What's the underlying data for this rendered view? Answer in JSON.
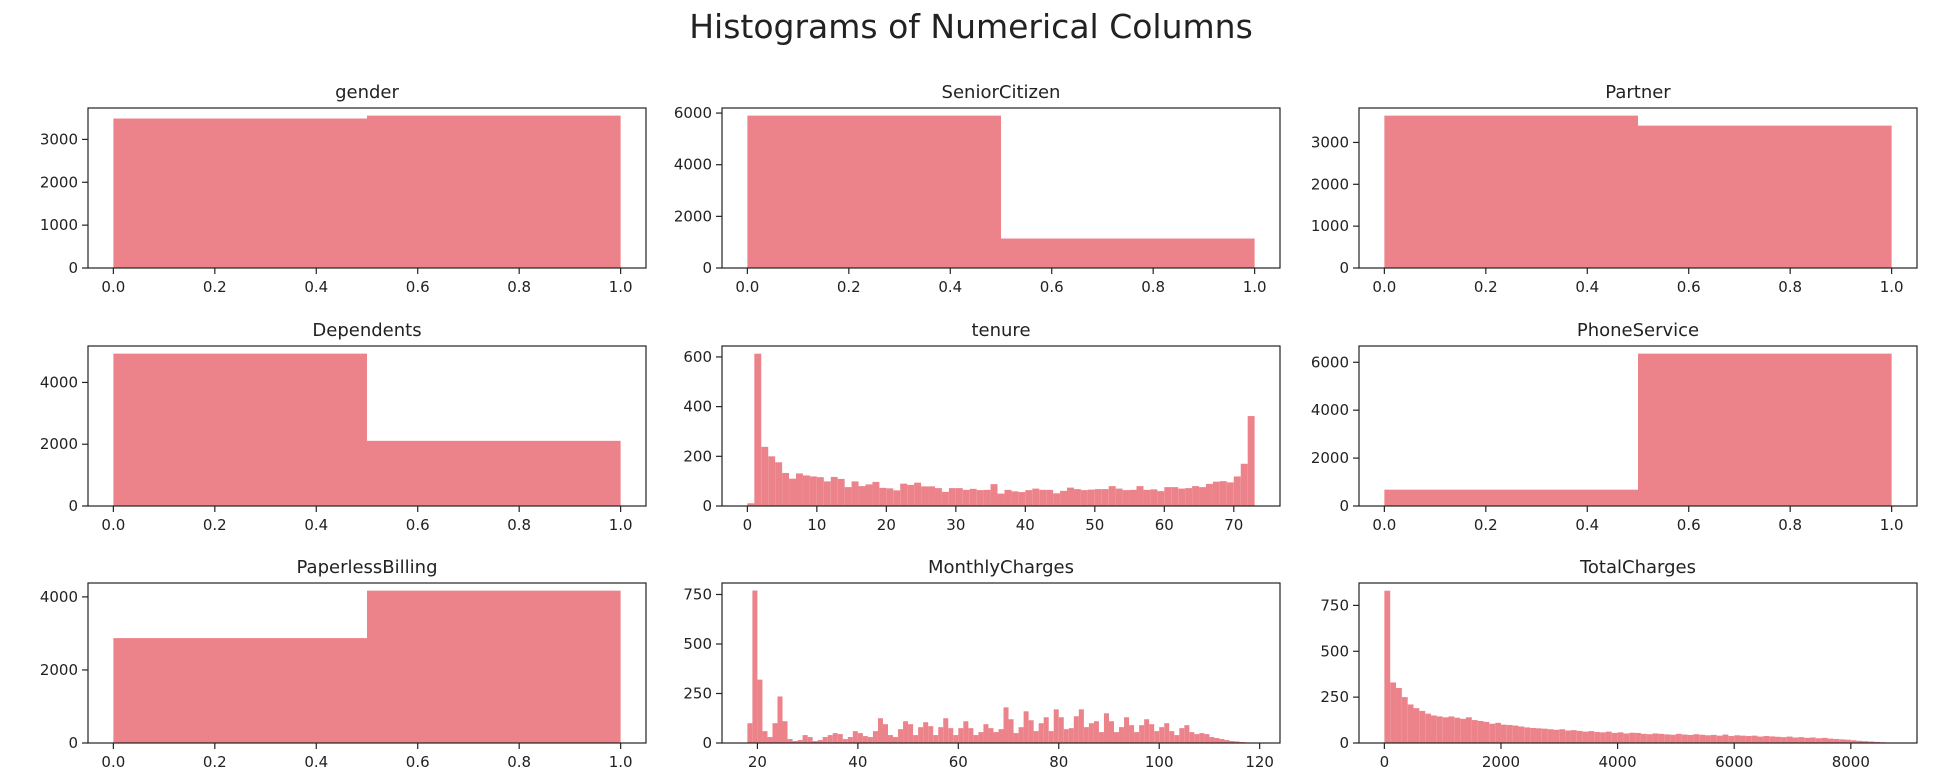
{
  "title": "Histograms of Numerical Columns",
  "chart_data": [
    {
      "type": "histogram",
      "title": "gender",
      "bins": [
        0,
        0.5,
        1
      ],
      "values": [
        3488,
        3555
      ],
      "color": "#ec838b",
      "xlim": [
        -0.05,
        1.05
      ],
      "ylim": [
        0,
        3733
      ],
      "xticks": [
        {
          "value": 0,
          "label": "0.0"
        },
        0.2,
        0.4,
        0.6,
        0.8,
        {
          "value": 1,
          "label": "1.0"
        }
      ],
      "yticks": [
        0,
        1000,
        2000,
        3000
      ]
    },
    {
      "type": "histogram",
      "title": "SeniorCitizen",
      "bins": [
        0,
        0.5,
        1
      ],
      "values": [
        5901,
        1142
      ],
      "color": "#ec838b",
      "xlim": [
        -0.05,
        1.05
      ],
      "ylim": [
        0,
        6196
      ],
      "xticks": [
        {
          "value": 0,
          "label": "0.0"
        },
        0.2,
        0.4,
        0.6,
        0.8,
        {
          "value": 1,
          "label": "1.0"
        }
      ],
      "yticks": [
        0,
        2000,
        4000,
        6000
      ]
    },
    {
      "type": "histogram",
      "title": "Partner",
      "bins": [
        0,
        0.5,
        1
      ],
      "values": [
        3641,
        3402
      ],
      "color": "#ec838b",
      "xlim": [
        -0.05,
        1.05
      ],
      "ylim": [
        0,
        3823
      ],
      "xticks": [
        {
          "value": 0,
          "label": "0.0"
        },
        0.2,
        0.4,
        0.6,
        0.8,
        {
          "value": 1,
          "label": "1.0"
        }
      ],
      "yticks": [
        0,
        1000,
        2000,
        3000
      ]
    },
    {
      "type": "histogram",
      "title": "Dependents",
      "bins": [
        0,
        0.5,
        1
      ],
      "values": [
        4933,
        2110
      ],
      "color": "#ec838b",
      "xlim": [
        -0.05,
        1.05
      ],
      "ylim": [
        0,
        5180
      ],
      "xticks": [
        {
          "value": 0,
          "label": "0.0"
        },
        0.2,
        0.4,
        0.6,
        0.8,
        {
          "value": 1,
          "label": "1.0"
        }
      ],
      "yticks": [
        0,
        2000,
        4000
      ]
    },
    {
      "type": "histogram",
      "title": "tenure",
      "bins": [
        0,
        1,
        2,
        3,
        4,
        5,
        6,
        7,
        8,
        9,
        10,
        11,
        12,
        13,
        14,
        15,
        16,
        17,
        18,
        19,
        20,
        21,
        22,
        23,
        24,
        25,
        26,
        27,
        28,
        29,
        30,
        31,
        32,
        33,
        34,
        35,
        36,
        37,
        38,
        39,
        40,
        41,
        42,
        43,
        44,
        45,
        46,
        47,
        48,
        49,
        50,
        51,
        52,
        53,
        54,
        55,
        56,
        57,
        58,
        59,
        60,
        61,
        62,
        63,
        64,
        65,
        66,
        67,
        68,
        69,
        70,
        71,
        72,
        73
      ],
      "values": [
        11,
        613,
        238,
        200,
        176,
        133,
        110,
        131,
        123,
        119,
        116,
        99,
        117,
        109,
        76,
        99,
        80,
        87,
        97,
        73,
        71,
        63,
        90,
        85,
        94,
        79,
        79,
        72,
        57,
        72,
        72,
        65,
        69,
        64,
        65,
        88,
        50,
        65,
        59,
        56,
        64,
        70,
        65,
        65,
        51,
        61,
        74,
        68,
        64,
        66,
        68,
        68,
        80,
        70,
        64,
        65,
        80,
        65,
        67,
        60,
        76,
        76,
        70,
        72,
        80,
        76,
        89,
        98,
        100,
        95,
        119,
        170,
        362
      ],
      "color": "#ec838b",
      "xlim": [
        -3.65,
        76.65
      ],
      "ylim": [
        0,
        644
      ],
      "xticks": [
        0,
        10,
        20,
        30,
        40,
        50,
        60,
        70
      ],
      "yticks": [
        0,
        200,
        400,
        600
      ]
    },
    {
      "type": "histogram",
      "title": "PhoneService",
      "bins": [
        0,
        0.5,
        1
      ],
      "values": [
        682,
        6361
      ],
      "color": "#ec838b",
      "xlim": [
        -0.05,
        1.05
      ],
      "ylim": [
        0,
        6679
      ],
      "xticks": [
        {
          "value": 0,
          "label": "0.0"
        },
        0.2,
        0.4,
        0.6,
        0.8,
        {
          "value": 1,
          "label": "1.0"
        }
      ],
      "yticks": [
        0,
        2000,
        4000,
        6000
      ]
    },
    {
      "type": "histogram",
      "title": "PaperlessBilling",
      "bins": [
        0,
        0.5,
        1
      ],
      "values": [
        2872,
        4171
      ],
      "color": "#ec838b",
      "xlim": [
        -0.05,
        1.05
      ],
      "ylim": [
        0,
        4380
      ],
      "xticks": [
        {
          "value": 0,
          "label": "0.0"
        },
        0.2,
        0.4,
        0.6,
        0.8,
        {
          "value": 1,
          "label": "1.0"
        }
      ],
      "yticks": [
        0,
        2000,
        4000
      ]
    },
    {
      "type": "histogram",
      "title": "MonthlyCharges",
      "bins": [
        18,
        19,
        20,
        21,
        22,
        23,
        24,
        25,
        26,
        27,
        28,
        29,
        30,
        31,
        32,
        33,
        34,
        35,
        36,
        37,
        38,
        39,
        40,
        41,
        42,
        43,
        44,
        45,
        46,
        47,
        48,
        49,
        50,
        51,
        52,
        53,
        54,
        55,
        56,
        57,
        58,
        59,
        60,
        61,
        62,
        63,
        64,
        65,
        66,
        67,
        68,
        69,
        70,
        71,
        72,
        73,
        74,
        75,
        76,
        77,
        78,
        79,
        80,
        81,
        82,
        83,
        84,
        85,
        86,
        87,
        88,
        89,
        90,
        91,
        92,
        93,
        94,
        95,
        96,
        97,
        98,
        99,
        100,
        101,
        102,
        103,
        104,
        105,
        106,
        107,
        108,
        109,
        110,
        111,
        112,
        113,
        114,
        115,
        116,
        117,
        118,
        119
      ],
      "values": [
        100,
        770,
        320,
        60,
        30,
        100,
        235,
        110,
        20,
        10,
        15,
        40,
        30,
        10,
        15,
        30,
        40,
        50,
        45,
        20,
        30,
        60,
        50,
        35,
        30,
        60,
        125,
        95,
        40,
        30,
        70,
        110,
        95,
        40,
        80,
        105,
        85,
        40,
        80,
        125,
        75,
        40,
        75,
        110,
        75,
        40,
        55,
        95,
        75,
        55,
        70,
        180,
        120,
        50,
        80,
        160,
        115,
        60,
        100,
        130,
        60,
        170,
        130,
        70,
        75,
        135,
        170,
        80,
        100,
        110,
        55,
        150,
        110,
        55,
        80,
        130,
        90,
        55,
        90,
        120,
        95,
        60,
        80,
        100,
        60,
        40,
        75,
        90,
        55,
        45,
        50,
        45,
        30,
        25,
        20,
        15,
        10,
        8,
        5,
        3,
        2
      ],
      "color": "#ec838b",
      "xlim": [
        12.95,
        124.05
      ],
      "ylim": [
        0,
        808
      ],
      "xticks": [
        20,
        40,
        60,
        80,
        100,
        120
      ],
      "yticks": [
        0,
        250,
        500,
        750
      ]
    },
    {
      "type": "histogram",
      "title": "TotalCharges",
      "bins": [
        0,
        100,
        200,
        300,
        400,
        500,
        600,
        700,
        800,
        900,
        1000,
        1100,
        1200,
        1300,
        1400,
        1500,
        1600,
        1700,
        1800,
        1900,
        2000,
        2100,
        2200,
        2300,
        2400,
        2500,
        2600,
        2700,
        2800,
        2900,
        3000,
        3100,
        3200,
        3300,
        3400,
        3500,
        3600,
        3700,
        3800,
        3900,
        4000,
        4100,
        4200,
        4300,
        4400,
        4500,
        4600,
        4700,
        4800,
        4900,
        5000,
        5100,
        5200,
        5300,
        5400,
        5500,
        5600,
        5700,
        5800,
        5900,
        6000,
        6100,
        6200,
        6300,
        6400,
        6500,
        6600,
        6700,
        6800,
        6900,
        7000,
        7100,
        7200,
        7300,
        7400,
        7500,
        7600,
        7700,
        7800,
        7900,
        8000,
        8100,
        8200,
        8300,
        8400,
        8500,
        8600,
        8700
      ],
      "values": [
        830,
        330,
        300,
        250,
        210,
        190,
        175,
        160,
        150,
        145,
        140,
        145,
        138,
        132,
        140,
        125,
        120,
        115,
        105,
        110,
        100,
        98,
        95,
        90,
        85,
        82,
        80,
        78,
        75,
        72,
        75,
        68,
        70,
        66,
        62,
        65,
        60,
        58,
        62,
        55,
        58,
        52,
        56,
        55,
        50,
        48,
        52,
        50,
        47,
        45,
        50,
        46,
        44,
        48,
        45,
        42,
        44,
        40,
        46,
        38,
        42,
        40,
        38,
        40,
        35,
        38,
        36,
        34,
        32,
        35,
        30,
        32,
        28,
        30,
        26,
        28,
        24,
        22,
        20,
        18,
        15,
        12,
        10,
        8,
        6,
        4,
        2
      ],
      "color": "#ec838b",
      "xlim": [
        -435,
        9135
      ],
      "ylim": [
        0,
        872
      ],
      "xticks": [
        0,
        2000,
        4000,
        6000,
        8000
      ],
      "yticks": [
        0,
        250,
        500,
        750
      ]
    }
  ]
}
